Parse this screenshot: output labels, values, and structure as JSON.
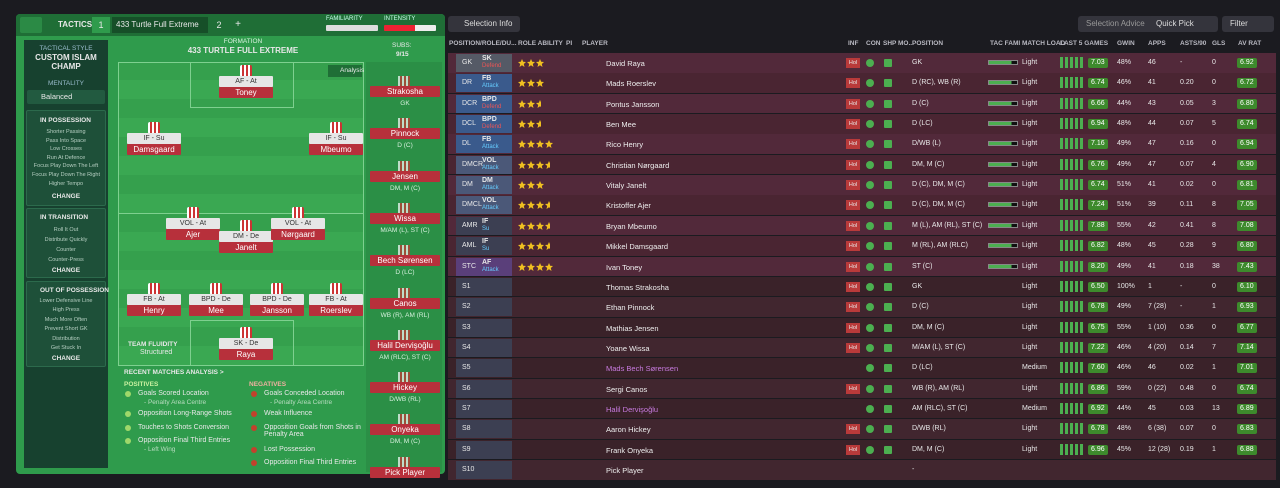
{
  "header": {
    "tab": "TACTICS",
    "slot1": "1",
    "tactic_name": "433 Turtle Full Extreme",
    "slot2": "2",
    "add": "+",
    "familiarity": "FAMILIARITY",
    "intensity": "INTENSITY"
  },
  "sidebar": {
    "style_label": "TACTICAL STYLE",
    "style": "CUSTOM ISLAM CHAMP",
    "mentality_label": "MENTALITY",
    "mentality": "Balanced",
    "phases": [
      {
        "title": "IN POSSESSION",
        "items": [
          "Shorter Passing",
          "Pass Into Space",
          "Low Crosses",
          "Run At Defence",
          "Focus Play Down The Left",
          "Focus Play Down The Right",
          "Higher Tempo"
        ],
        "button": "CHANGE"
      },
      {
        "title": "IN TRANSITION",
        "items": [
          "Roll It Out",
          "Distribute Quickly",
          "Counter",
          "Counter-Press"
        ],
        "button": "CHANGE"
      },
      {
        "title": "OUT OF POSSESSION",
        "items": [
          "Lower Defensive Line",
          "High Press",
          "Much More Often",
          "Prevent Short GK",
          "Distribution",
          "Get Stuck In"
        ],
        "button": "CHANGE"
      }
    ]
  },
  "formation": {
    "label": "FORMATION",
    "name": "433 TURTLE FULL EXTREME",
    "subs_label": "SUBS:",
    "subs_count": "9/15",
    "analysis": "Analysis",
    "fluidity_label": "TEAM FLUIDITY",
    "fluidity": "Structured",
    "players": [
      {
        "role": "AF - At",
        "name": "Toney"
      },
      {
        "role": "IF - Su",
        "name": "Damsgaard"
      },
      {
        "role": "IF - Su",
        "name": "Mbeumo"
      },
      {
        "role": "VOL - At",
        "name": "Ajer"
      },
      {
        "role": "DM - De",
        "name": "Janelt"
      },
      {
        "role": "VOL - At",
        "name": "Nørgaard"
      },
      {
        "role": "FB - At",
        "name": "Henry"
      },
      {
        "role": "BPD - De",
        "name": "Mee"
      },
      {
        "role": "BPD - De",
        "name": "Jansson"
      },
      {
        "role": "FB - At",
        "name": "Roerslev"
      },
      {
        "role": "SK - De",
        "name": "Raya"
      }
    ],
    "subs": [
      {
        "name": "Strakosha",
        "pos": "GK"
      },
      {
        "name": "Pinnock",
        "pos": "D (C)"
      },
      {
        "name": "Jensen",
        "pos": "DM, M (C)"
      },
      {
        "name": "Wissa",
        "pos": "M/AM (L), ST (C)"
      },
      {
        "name": "Bech Sørensen",
        "pos": "D (LC)"
      },
      {
        "name": "Canos",
        "pos": "WB (R), AM (RL)"
      },
      {
        "name": "Halil Dervişoğlu",
        "pos": "AM (RLC), ST (C)"
      },
      {
        "name": "Hickey",
        "pos": "D/WB (RL)"
      },
      {
        "name": "Onyeka",
        "pos": "DM, M (C)"
      },
      {
        "name": "Pick Player"
      }
    ]
  },
  "analysis": {
    "title": "RECENT MATCHES ANALYSIS >",
    "positives_label": "POSITIVES",
    "positives": [
      {
        "text": "Goals Scored Location",
        "detail": "- Penalty Area Centre"
      },
      {
        "text": "Opposition Long-Range Shots"
      },
      {
        "text": "Touches to Shots Conversion"
      },
      {
        "text": "Opposition Final Third Entries",
        "detail": "- Left Wing"
      }
    ],
    "negatives_label": "NEGATIVES",
    "negatives": [
      {
        "text": "Goals Conceded Location",
        "detail": "- Penalty Area Centre"
      },
      {
        "text": "Weak Influence"
      },
      {
        "text": "Opposition Goals from Shots in Penalty Area"
      },
      {
        "text": "Lost Possession"
      },
      {
        "text": "Opposition Final Third Entries"
      }
    ]
  },
  "toolbar": {
    "selection_info": "Selection Info",
    "selection_advice": "Selection Advice",
    "quick_pick": "Quick Pick",
    "filter": "Filter"
  },
  "table": {
    "columns": [
      "POSITION/ROLE/DU...",
      "ROLE ABILITY",
      "PI",
      "PLAYER",
      "INF",
      "CON",
      "SHP",
      "MO...",
      "POSITION",
      "TAC FAMI",
      "MATCH LOAD",
      "LAST 5 GAMES",
      "GWIN",
      "APPS",
      "ASTS/90",
      "GLS",
      "AV RAT"
    ],
    "rows": [
      [
        "GK",
        "SK",
        "Defend",
        3,
        "David Raya",
        "Hol",
        "GK",
        "Light",
        "7.03",
        "48%",
        "46",
        "-",
        "0",
        "6.92"
      ],
      [
        "DR",
        "FB",
        "Attack",
        3,
        "Mads Roerslev",
        "Hol",
        "D (RC), WB (R)",
        "Light",
        "6.74",
        "46%",
        "41",
        "0.20",
        "0",
        "6.72"
      ],
      [
        "DCR",
        "BPD",
        "Defend",
        2.5,
        "Pontus Jansson",
        "Hol",
        "D (C)",
        "Light",
        "6.66",
        "44%",
        "43",
        "0.05",
        "3",
        "6.80"
      ],
      [
        "DCL",
        "BPD",
        "Defend",
        2.5,
        "Ben Mee",
        "Hol",
        "D (LC)",
        "Light",
        "6.94",
        "48%",
        "44",
        "0.07",
        "5",
        "6.74"
      ],
      [
        "DL",
        "FB",
        "Attack",
        4,
        "Rico Henry",
        "Hol",
        "D/WB (L)",
        "Light",
        "7.16",
        "49%",
        "47",
        "0.16",
        "0",
        "6.94"
      ],
      [
        "DMCR",
        "VOL",
        "Attack",
        3.5,
        "Christian Nørgaard",
        "Hol",
        "DM, M (C)",
        "Light",
        "6.76",
        "49%",
        "47",
        "0.07",
        "4",
        "6.90"
      ],
      [
        "DM",
        "DM",
        "Attack",
        3,
        "Vitaly Janelt",
        "Hol",
        "D (C), DM, M (C)",
        "Light",
        "6.74",
        "51%",
        "41",
        "0.02",
        "0",
        "6.81"
      ],
      [
        "DMCL",
        "VOL",
        "Attack",
        3.5,
        "Kristoffer Ajer",
        "Hol",
        "D (C), DM, M (C)",
        "Light",
        "7.24",
        "51%",
        "39",
        "0.11",
        "8",
        "7.05"
      ],
      [
        "AMR",
        "IF",
        "Su",
        3.5,
        "Bryan Mbeumo",
        "Hol",
        "M (L), AM (RL), ST (C)",
        "Light",
        "7.88",
        "55%",
        "42",
        "0.41",
        "8",
        "7.08"
      ],
      [
        "AML",
        "IF",
        "Su",
        3.5,
        "Mikkel Damsgaard",
        "Hol",
        "M (RL), AM (RLC)",
        "Light",
        "6.82",
        "48%",
        "45",
        "0.28",
        "9",
        "6.80"
      ],
      [
        "STC",
        "AF",
        "Attack",
        4,
        "Ivan Toney",
        "Hol",
        "ST (C)",
        "Light",
        "8.20",
        "49%",
        "41",
        "0.18",
        "38",
        "7.43"
      ],
      [
        "S1",
        null,
        null,
        null,
        "Thomas Strakosha",
        "Hol",
        "GK",
        "Light",
        "6.50",
        "100%",
        "1",
        "-",
        "0",
        "6.10"
      ],
      [
        "S2",
        null,
        null,
        null,
        "Ethan Pinnock",
        "Hol",
        "D (C)",
        "Light",
        "6.78",
        "49%",
        "7 (28)",
        "-",
        "1",
        "6.93"
      ],
      [
        "S3",
        null,
        null,
        null,
        "Mathias Jensen",
        "Hol",
        "DM, M (C)",
        "Light",
        "6.75",
        "55%",
        "1 (10)",
        "0.36",
        "0",
        "6.77"
      ],
      [
        "S4",
        null,
        null,
        null,
        "Yoane Wissa",
        "Hol",
        "M/AM (L), ST (C)",
        "Light",
        "7.22",
        "46%",
        "4 (20)",
        "0.14",
        "7",
        "7.14"
      ],
      [
        "S5",
        null,
        null,
        null,
        "Mads Bech Sørensen",
        null,
        "D (LC)",
        "Medium",
        "7.60",
        "46%",
        "46",
        "0.02",
        "1",
        "7.01"
      ],
      [
        "S6",
        null,
        null,
        null,
        "Sergi Canos",
        "Hol",
        "WB (R), AM (RL)",
        "Light",
        "6.86",
        "59%",
        "0 (22)",
        "0.48",
        "0",
        "6.74"
      ],
      [
        "S7",
        null,
        null,
        null,
        "Halil Dervişoğlu",
        null,
        "AM (RLC), ST (C)",
        "Medium",
        "6.92",
        "44%",
        "45",
        "0.03",
        "13",
        "6.89"
      ],
      [
        "S8",
        null,
        null,
        null,
        "Aaron Hickey",
        "Hol",
        "D/WB (RL)",
        "Light",
        "6.78",
        "48%",
        "6 (38)",
        "0.07",
        "0",
        "6.83"
      ],
      [
        "S9",
        null,
        null,
        null,
        "Frank Onyeka",
        "Hol",
        "DM, M (C)",
        "Light",
        "6.96",
        "45%",
        "12 (28)",
        "0.19",
        "1",
        "6.88"
      ],
      [
        "S10",
        null,
        null,
        null,
        "Pick Player",
        null,
        "-",
        null,
        null,
        null,
        null,
        null,
        null,
        null
      ]
    ]
  }
}
